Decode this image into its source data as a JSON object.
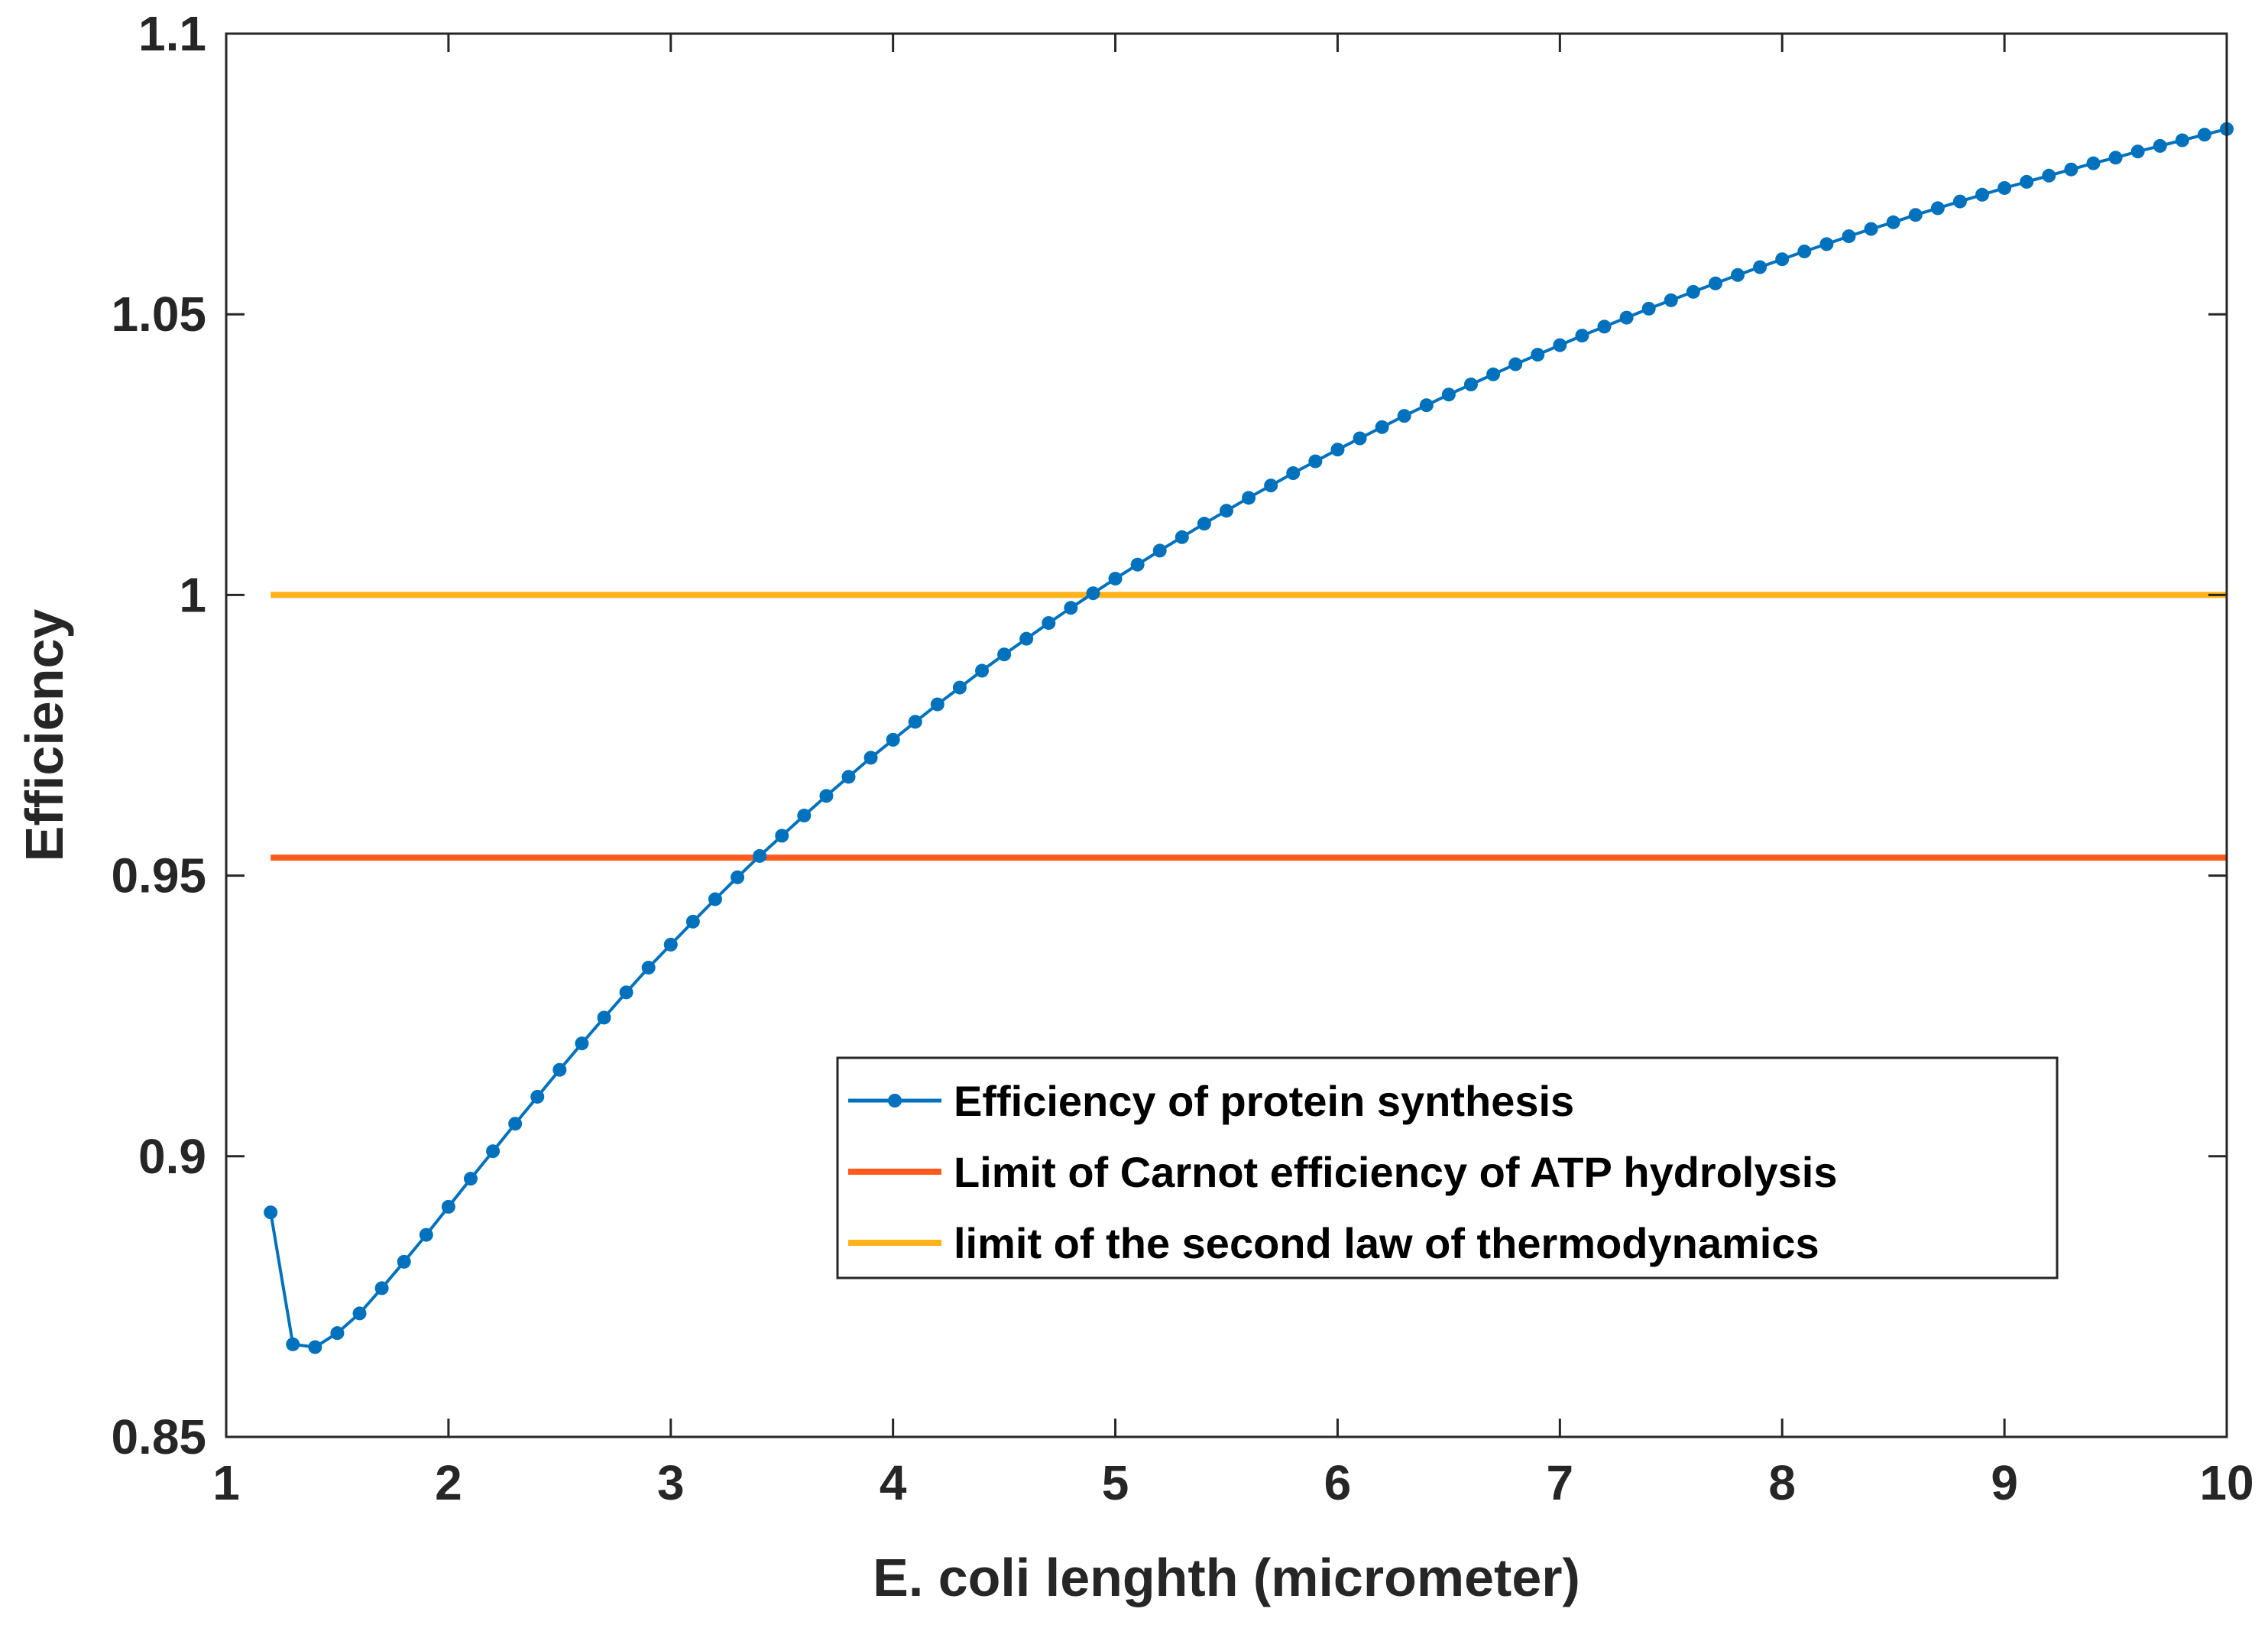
{
  "chart_data": {
    "type": "line",
    "title": "",
    "xlabel": "E. coli lenghth (micrometer)",
    "ylabel": "Efficiency",
    "xlim": [
      1,
      10
    ],
    "ylim": [
      0.85,
      1.1
    ],
    "xticks": [
      1,
      2,
      3,
      4,
      5,
      6,
      7,
      8,
      9,
      10
    ],
    "xtick_labels": [
      "1",
      "2",
      "3",
      "4",
      "5",
      "6",
      "7",
      "8",
      "9",
      "10"
    ],
    "yticks": [
      0.85,
      0.9,
      0.95,
      1.0,
      1.05,
      1.1
    ],
    "ytick_labels": [
      "0.85",
      "0.9",
      "0.95",
      "1",
      "1.05",
      "1.1"
    ],
    "grid": false,
    "legend_position": "center-right",
    "series": [
      {
        "name": "Efficiency of protein synthesis",
        "color": "#0072BD",
        "marker": "dot",
        "x": [
          1.2,
          1.3,
          1.4,
          1.5,
          1.6,
          1.7,
          1.8,
          1.9,
          2.0,
          2.1,
          2.2,
          2.3,
          2.4,
          2.5,
          2.6,
          2.7,
          2.8,
          2.9,
          3.0,
          3.1,
          3.2,
          3.3,
          3.4,
          3.5,
          3.6,
          3.7,
          3.8,
          3.9,
          4.0,
          4.1,
          4.2,
          4.3,
          4.4,
          4.5,
          4.6,
          4.7,
          4.8,
          4.9,
          5.0,
          5.1,
          5.2,
          5.3,
          5.4,
          5.5,
          5.6,
          5.7,
          5.8,
          5.9,
          6.0,
          6.1,
          6.2,
          6.3,
          6.4,
          6.5,
          6.6,
          6.7,
          6.8,
          6.9,
          7.0,
          7.1,
          7.2,
          7.3,
          7.4,
          7.5,
          7.6,
          7.7,
          7.8,
          7.9,
          8.0,
          8.1,
          8.2,
          8.3,
          8.4,
          8.5,
          8.6,
          8.7,
          8.8,
          8.9,
          9.0,
          9.1,
          9.2,
          9.3,
          9.4,
          9.5,
          9.6,
          9.7,
          9.8,
          9.9,
          10.0
        ],
        "y": [
          0.89,
          0.8665,
          0.866,
          0.8685,
          0.872,
          0.8765,
          0.8812,
          0.886,
          0.891,
          0.896,
          0.9009,
          0.9058,
          0.9106,
          0.9154,
          0.9201,
          0.9247,
          0.9292,
          0.9336,
          0.9377,
          0.9418,
          0.9458,
          0.9497,
          0.9535,
          0.9571,
          0.9607,
          0.9642,
          0.9676,
          0.971,
          0.9742,
          0.9774,
          0.9805,
          0.9835,
          0.9865,
          0.9894,
          0.9922,
          0.995,
          0.9977,
          1.0003,
          1.0029,
          1.0054,
          1.0079,
          1.0103,
          1.0127,
          1.015,
          1.0173,
          1.0195,
          1.0217,
          1.0238,
          1.0259,
          1.0279,
          1.0299,
          1.0319,
          1.0338,
          1.0357,
          1.0375,
          1.0393,
          1.0411,
          1.0428,
          1.0445,
          1.0462,
          1.0478,
          1.0494,
          1.051,
          1.0525,
          1.054,
          1.0555,
          1.057,
          1.0584,
          1.0598,
          1.0612,
          1.0625,
          1.0639,
          1.0652,
          1.0664,
          1.0677,
          1.0689,
          1.0701,
          1.0713,
          1.0725,
          1.0736,
          1.0747,
          1.0758,
          1.0769,
          1.0779,
          1.079,
          1.08,
          1.081,
          1.082,
          1.083
        ]
      },
      {
        "name": "Limit of Carnot efficiency of ATP hydrolysis",
        "color": "#FF5A1E",
        "marker": "none",
        "x": [
          1.2,
          10.0
        ],
        "y": [
          0.9532,
          0.9532
        ]
      },
      {
        "name": "limit of the second law of thermodynamics",
        "color": "#FFB319",
        "marker": "none",
        "x": [
          1.2,
          10.0
        ],
        "y": [
          1.0,
          1.0
        ]
      }
    ]
  }
}
